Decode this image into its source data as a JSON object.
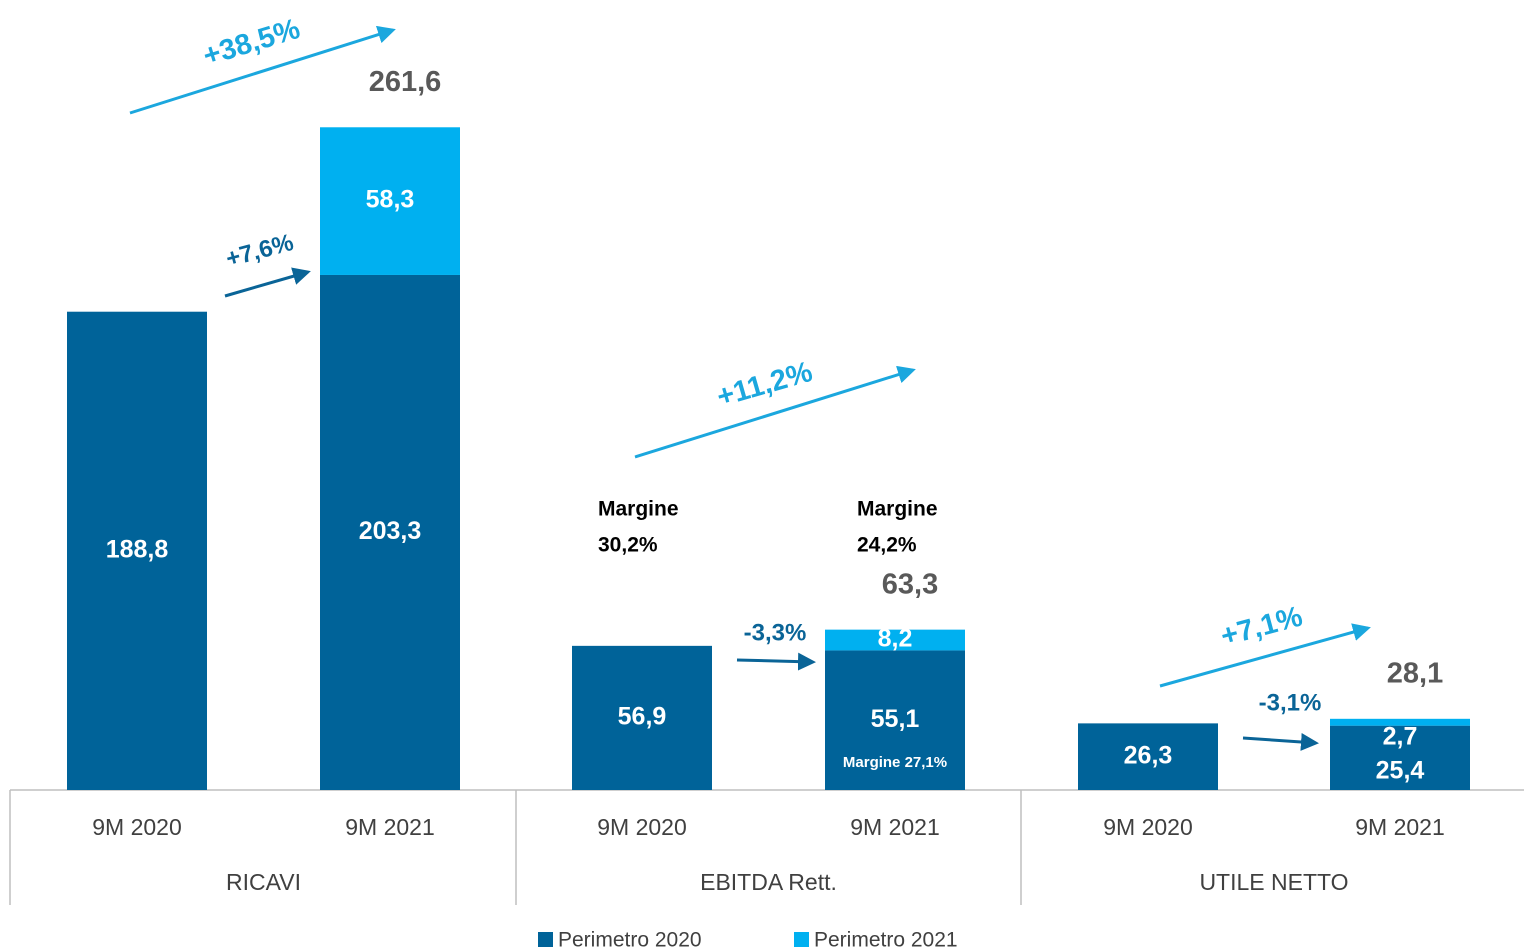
{
  "chart_data": {
    "type": "stacked_bar",
    "groups": [
      "RICAVI",
      "EBITDA Rett.",
      "UTILE NETTO"
    ],
    "categories": [
      "9M 2020",
      "9M 2021",
      "9M 2020",
      "9M 2021",
      "9M 2020",
      "9M 2021"
    ],
    "series": [
      {
        "name": "Perimetro 2020",
        "color": "#006399",
        "values": [
          188.8,
          203.3,
          56.9,
          55.1,
          26.3,
          25.4
        ],
        "value_labels": [
          "188,8",
          "203,3",
          "56,9",
          "55,1",
          "26,3",
          "25,4"
        ]
      },
      {
        "name": "Perimetro 2021",
        "color": "#00b0f0",
        "values": [
          null,
          58.3,
          null,
          8.2,
          null,
          2.7
        ],
        "value_labels": [
          null,
          "58,3",
          null,
          "8,2",
          null,
          "2,7"
        ]
      }
    ],
    "totals": [
      null,
      261.6,
      null,
      63.3,
      null,
      28.1
    ],
    "total_labels": [
      null,
      "261,6",
      null,
      "63,3",
      null,
      "28,1"
    ],
    "ylim": [
      0,
      300
    ],
    "annotations": [
      {
        "text": "+38,5%",
        "kind": "total"
      },
      {
        "text": "+7,6%",
        "kind": "perimeter"
      },
      {
        "text": "+11,2%",
        "kind": "total"
      },
      {
        "text": "-3,3%",
        "kind": "perimeter"
      },
      {
        "text": "+7,1%",
        "kind": "total"
      },
      {
        "text": "-3,1%",
        "kind": "perimeter"
      }
    ],
    "margins": [
      {
        "lines": [
          "Margine",
          "30,2%"
        ]
      },
      {
        "lines": [
          "Margine",
          "24,2%"
        ]
      },
      {
        "lines": [
          "Margine 27,1%"
        ]
      }
    ]
  }
}
